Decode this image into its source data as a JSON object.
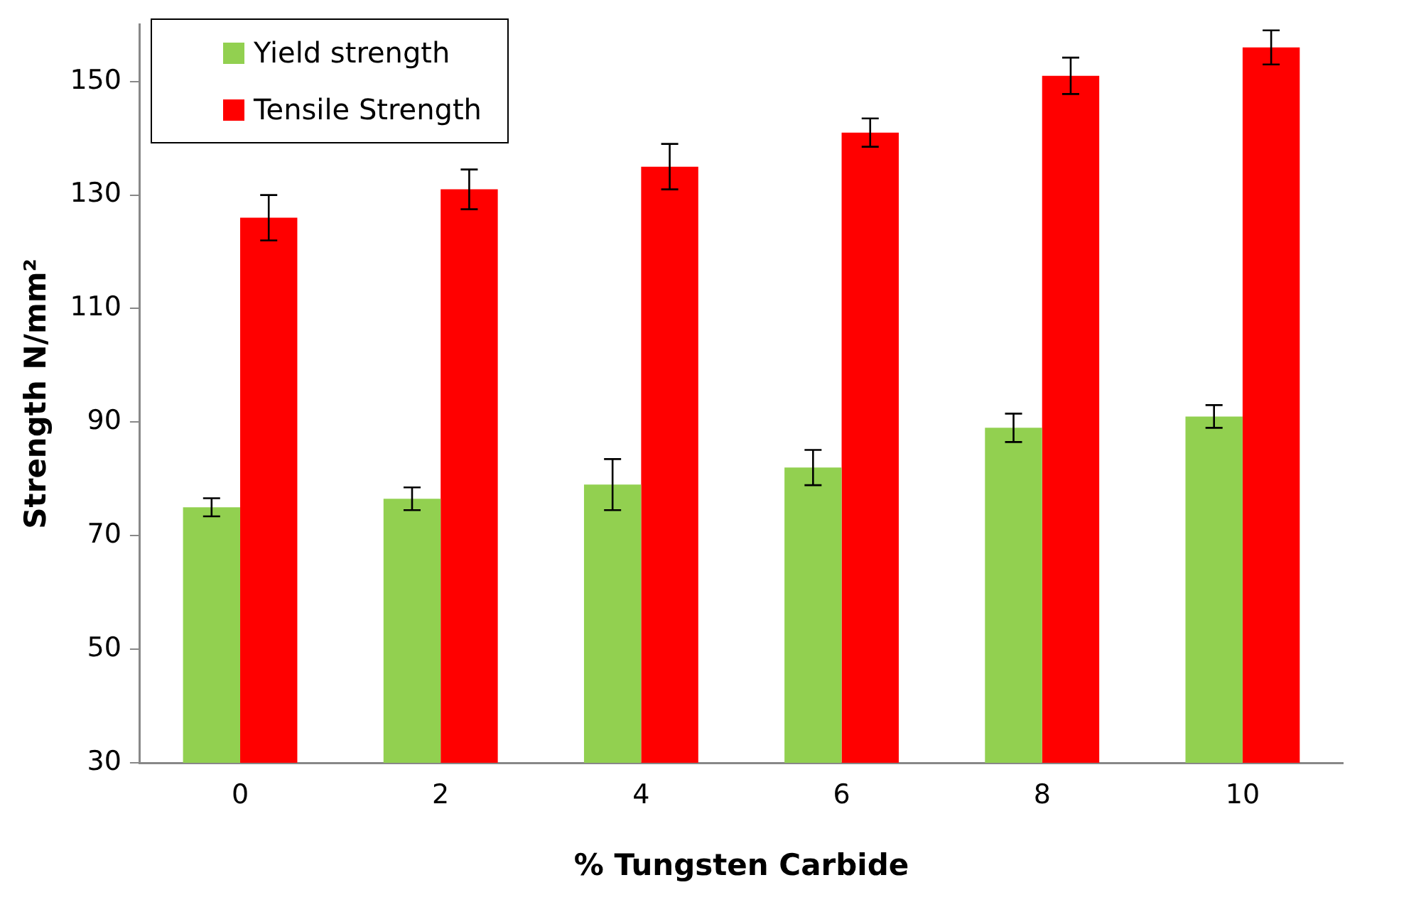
{
  "chart_data": {
    "type": "bar",
    "xlabel": "% Tungsten Carbide",
    "ylabel": "Strength N/mm²",
    "categories": [
      "0",
      "2",
      "4",
      "6",
      "8",
      "10"
    ],
    "series": [
      {
        "name": "Yield strength",
        "color": "#92d050",
        "values": [
          75,
          76.5,
          79,
          82,
          89,
          91
        ],
        "errors": [
          1.6,
          2,
          4.5,
          3.1,
          2.5,
          2
        ]
      },
      {
        "name": "Tensile Strength",
        "color": "#ff0000",
        "values": [
          126,
          131,
          135,
          141,
          151,
          156
        ],
        "errors": [
          4,
          3.5,
          4,
          2.5,
          3.2,
          3
        ]
      }
    ],
    "ylim": [
      30,
      160
    ],
    "yticks": [
      30,
      50,
      70,
      90,
      110,
      130,
      150
    ],
    "grid": false,
    "legend": "top left"
  }
}
